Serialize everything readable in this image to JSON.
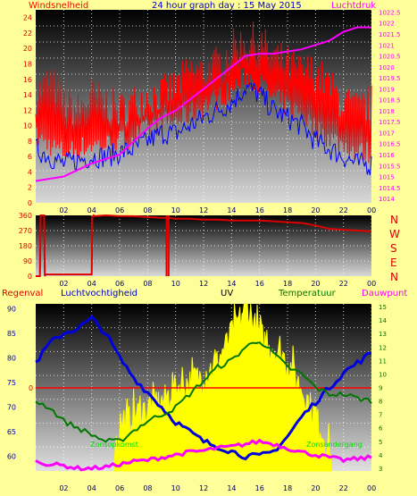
{
  "colors": {
    "background": "#ffff99",
    "wind": "#ff0000",
    "wind_avg": "#0000ff",
    "pressure": "#ff00ff",
    "direction": "#dd0000",
    "rain": "#ff0000",
    "humidity": "#0000dd",
    "temperature": "#007700",
    "uv": "#ffff00",
    "dewpoint": "#ff00ff",
    "sun_label": "#00dd00",
    "grid": "#ffffff"
  },
  "chart_data": [
    {
      "type": "line",
      "title": "24 hour graph day : 15 May 2015",
      "left_label": "Windsnelheid",
      "right_label": "Luchtdruk",
      "x_ticks": [
        "02",
        "04",
        "06",
        "08",
        "10",
        "12",
        "14",
        "16",
        "18",
        "20",
        "22",
        "00"
      ],
      "y_ticks": [
        "0",
        "2",
        "4",
        "6",
        "8",
        "10",
        "12",
        "14",
        "16",
        "18",
        "20",
        "22",
        "24"
      ],
      "y2_ticks": [
        "1014",
        "1014.5",
        "1015",
        "1015.5",
        "1016",
        "1016.5",
        "1017",
        "1017.5",
        "1018",
        "1018.5",
        "1019",
        "1019.5",
        "1020",
        "1020.5",
        "1021",
        "1021.5",
        "1022",
        "1022.5"
      ],
      "ylim": [
        0,
        25
      ],
      "y2lim": [
        1013.8,
        1022.6
      ],
      "grid": true,
      "series": [
        {
          "key": "gust",
          "hours": [
            0,
            1,
            2,
            3,
            4,
            5,
            6,
            7,
            8,
            9,
            10,
            11,
            12,
            13,
            14,
            15,
            16,
            17,
            18,
            19,
            20,
            21,
            22,
            23,
            24
          ],
          "values": [
            13,
            15,
            12,
            11,
            13,
            12,
            11,
            12,
            13,
            13,
            14,
            16,
            16,
            17,
            19,
            20,
            20,
            18,
            17,
            16,
            16,
            14,
            12,
            11,
            12
          ]
        },
        {
          "key": "average",
          "hours": [
            0,
            1,
            2,
            3,
            4,
            5,
            6,
            7,
            8,
            9,
            10,
            11,
            12,
            13,
            14,
            15,
            16,
            17,
            18,
            19,
            20,
            21,
            22,
            23,
            24
          ],
          "values": [
            7,
            6,
            5,
            5.5,
            6,
            6,
            6.5,
            7,
            8,
            9,
            9,
            10,
            11,
            12,
            13,
            15,
            14,
            12,
            11,
            10,
            8,
            7,
            6,
            5,
            5
          ]
        },
        {
          "key": "pressure",
          "hours": [
            0,
            1,
            2,
            3,
            4,
            5,
            6,
            7,
            8,
            9,
            10,
            11,
            12,
            13,
            14,
            15,
            16,
            17,
            18,
            19,
            20,
            21,
            22,
            23,
            24
          ],
          "values": [
            1014.8,
            1014.9,
            1015.0,
            1015.3,
            1015.6,
            1015.8,
            1016.0,
            1016.6,
            1017.2,
            1017.7,
            1018.0,
            1018.5,
            1019.0,
            1019.5,
            1020.0,
            1020.5,
            1020.6,
            1020.6,
            1020.7,
            1020.8,
            1021.0,
            1021.2,
            1021.6,
            1021.8,
            1021.8
          ]
        }
      ]
    },
    {
      "type": "line",
      "x_ticks": [
        "02",
        "04",
        "06",
        "08",
        "10",
        "12",
        "14",
        "16",
        "18",
        "20",
        "22",
        "00"
      ],
      "y_ticks": [
        "0",
        "90",
        "180",
        "270",
        "360"
      ],
      "compass": [
        "N",
        "W",
        "S",
        "E",
        "N"
      ],
      "ylim": [
        0,
        360
      ],
      "series": [
        {
          "key": "direction",
          "hours": [
            0,
            0.3,
            0.35,
            0.6,
            0.65,
            0.7,
            2,
            3,
            3.8,
            4,
            4.05,
            4.15,
            4.2,
            5,
            6,
            7,
            8,
            9,
            9.5,
            10,
            11,
            12,
            13,
            14,
            15,
            16,
            17,
            18,
            19,
            20,
            21,
            22,
            23,
            24
          ],
          "values": [
            0,
            0,
            360,
            360,
            0,
            10,
            10,
            10,
            10,
            10,
            350,
            360,
            355,
            360,
            355,
            355,
            350,
            345,
            345,
            340,
            340,
            335,
            335,
            330,
            330,
            330,
            325,
            320,
            315,
            300,
            280,
            275,
            270,
            265
          ]
        }
      ]
    },
    {
      "type": "line",
      "labels": {
        "rain": "Regenval",
        "humidity": "Luchtvochtigheid",
        "uv": "UV",
        "temperature": "Temperatuur",
        "dewpoint": "Dauwpunt"
      },
      "x_ticks": [
        "02",
        "04",
        "06",
        "08",
        "10",
        "12",
        "14",
        "16",
        "18",
        "20",
        "22",
        "00"
      ],
      "y_ticks": [
        "60",
        "65",
        "70",
        "75",
        "80",
        "85",
        "90"
      ],
      "y2_ticks": [
        "3",
        "4",
        "5",
        "6",
        "7",
        "8",
        "9",
        "10",
        "11",
        "12",
        "13",
        "14",
        "15"
      ],
      "rain_tick": "0",
      "ylim": [
        57,
        91
      ],
      "y2lim": [
        2.8,
        15.2
      ],
      "annotations": {
        "sunrise": "Zonsopkomst",
        "sunset": "Zonsondergang"
      },
      "sunrise_hour": 5.6,
      "sunset_hour": 21.1,
      "series": [
        {
          "key": "humidity",
          "hours": [
            0,
            1,
            2,
            3,
            4,
            5,
            6,
            7,
            8,
            9,
            10,
            11,
            12,
            13,
            14,
            15,
            16,
            17,
            18,
            19,
            20,
            21,
            22,
            23,
            24
          ],
          "values": [
            79,
            83,
            85,
            86,
            88,
            85,
            80,
            76,
            73,
            70,
            67,
            65,
            63,
            62,
            61,
            60,
            60,
            61,
            64,
            68,
            71,
            74,
            77,
            79,
            81
          ]
        },
        {
          "key": "temperature",
          "hours": [
            0,
            1,
            2,
            3,
            4,
            5,
            6,
            7,
            8,
            9,
            10,
            11,
            12,
            13,
            14,
            15,
            16,
            17,
            18,
            19,
            20,
            21,
            22,
            23,
            24
          ],
          "values": [
            8,
            7.5,
            6.5,
            6,
            5.5,
            5,
            5,
            5.8,
            6.5,
            7,
            7.5,
            8.5,
            9.5,
            10.5,
            11,
            12,
            12.5,
            11.5,
            10.5,
            10,
            9,
            8.5,
            8.5,
            8.2,
            8
          ]
        },
        {
          "key": "dewpoint",
          "hours": [
            0,
            1,
            2,
            3,
            4,
            5,
            6,
            7,
            8,
            9,
            10,
            11,
            12,
            13,
            14,
            15,
            16,
            17,
            18,
            19,
            20,
            21,
            22,
            23,
            24
          ],
          "values": [
            3.5,
            3.3,
            3.2,
            3,
            3,
            3.1,
            3.3,
            3.5,
            3.6,
            3.8,
            4,
            4.2,
            4.3,
            4.5,
            4.6,
            4.8,
            5,
            4.8,
            4.5,
            4.2,
            4,
            3.8,
            3.6,
            3.7,
            3.8
          ]
        },
        {
          "key": "uv",
          "hours": [
            5.6,
            6,
            7,
            8,
            9,
            10,
            11,
            12,
            13,
            14,
            15,
            16,
            17,
            18,
            19,
            20,
            21.1
          ],
          "values": [
            4.5,
            6,
            7,
            7.5,
            8,
            9,
            9.5,
            10,
            11,
            13,
            15,
            13,
            12,
            11,
            9,
            7,
            4
          ]
        }
      ]
    }
  ]
}
